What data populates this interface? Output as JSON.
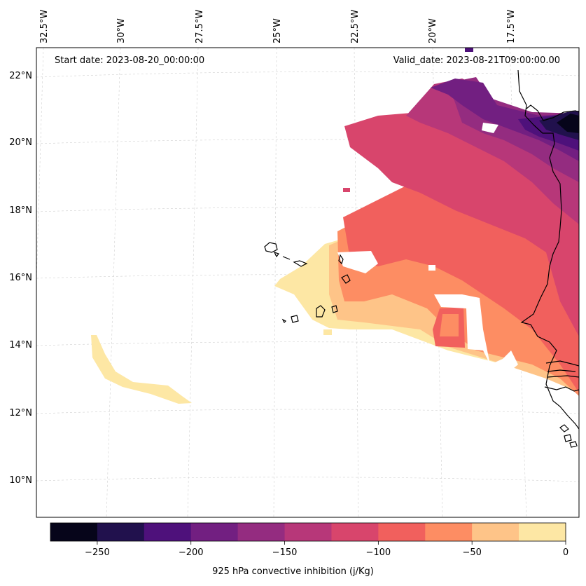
{
  "notes": {
    "start": "Start date: 2023-08-20_00:00:00",
    "valid": "Valid_date: 2023-08-21T09:00:00.00"
  },
  "lon_labels": [
    "32.5°W",
    "30°W",
    "27.5°W",
    "25°W",
    "22.5°W",
    "20°W",
    "17.5°W"
  ],
  "lat_labels": [
    "22°N",
    "20°N",
    "18°N",
    "16°N",
    "14°N",
    "12°N",
    "10°N"
  ],
  "colorbar": {
    "label": "925 hPa convective inhibition (j/Kg)",
    "ticks": [
      "−250",
      "−200",
      "−150",
      "−100",
      "−50",
      "0"
    ],
    "tick_values": [
      -250,
      -200,
      -150,
      -100,
      -50,
      0
    ],
    "min": -275,
    "max": 0,
    "colors": [
      "#06051a",
      "#21114d",
      "#4e117b",
      "#721f81",
      "#942c80",
      "#b73779",
      "#d8456c",
      "#f1605d",
      "#fd8d63",
      "#fec488",
      "#fde7a4"
    ]
  },
  "chart_data": {
    "type": "heatmap",
    "title": "",
    "colorbar_label": "925 hPa convective inhibition (j/Kg)",
    "value_range": [
      -275,
      0
    ],
    "levels": [
      -275,
      -250,
      -225,
      -200,
      -175,
      -150,
      -125,
      -100,
      -75,
      -50,
      -25,
      0
    ],
    "lon_range": [
      -33,
      -15.5
    ],
    "lat_range": [
      9,
      23
    ],
    "gridlines": true,
    "start_date": "2023-08-20_00:00:00",
    "valid_date": "2023-08-21T09:00:00.00"
  }
}
